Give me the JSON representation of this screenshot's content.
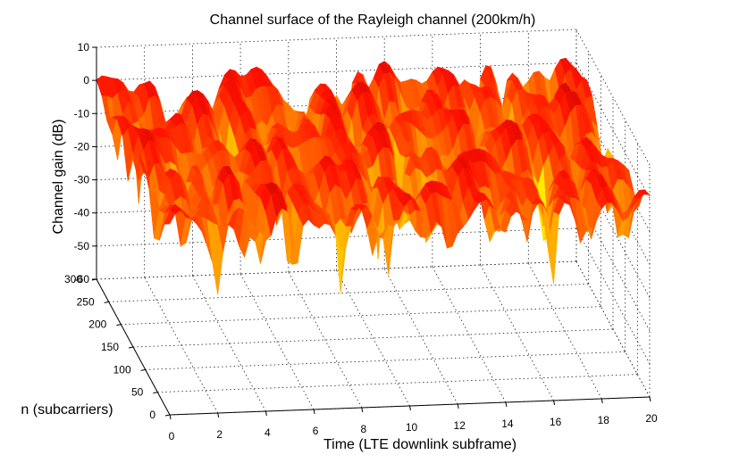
{
  "chart_data": {
    "type": "surface",
    "title": "Channel surface of the Rayleigh channel (200km/h)",
    "xlabel": "Time (LTE downlink subframe)",
    "ylabel": "n (subcarriers)",
    "zlabel": "Channel gain (dB)",
    "x_ticks": [
      "0",
      "2",
      "4",
      "6",
      "8",
      "10",
      "12",
      "14",
      "16",
      "18",
      "20"
    ],
    "y_ticks": [
      "0",
      "50",
      "100",
      "150",
      "200",
      "250",
      "300"
    ],
    "z_ticks": [
      "10",
      "0",
      "-10",
      "-20",
      "-30",
      "-40",
      "-50",
      "-60"
    ],
    "xlim": [
      0,
      20
    ],
    "ylim": [
      0,
      300
    ],
    "zlim": [
      -60,
      10
    ],
    "grid": true,
    "colormap": "jet",
    "peak_gain_db": 3,
    "deepest_fade_db": -62
  }
}
